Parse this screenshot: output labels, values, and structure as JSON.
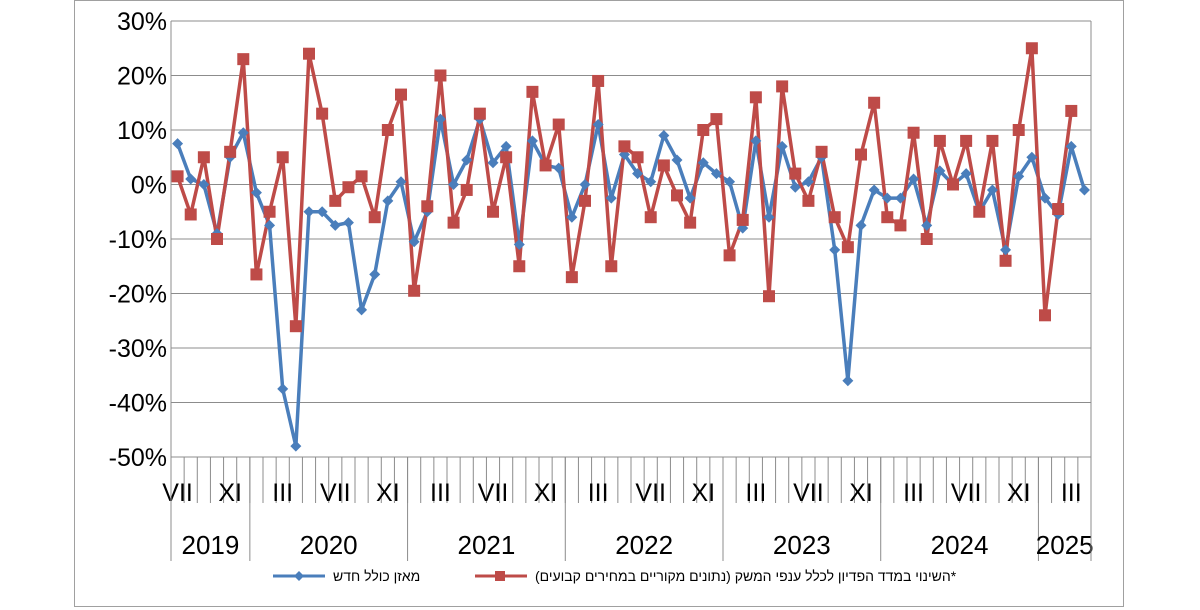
{
  "chart_data": {
    "type": "line",
    "title": "",
    "xlabel": "",
    "ylabel": "",
    "ylim": [
      -50,
      30
    ],
    "y_ticks": [
      "30%",
      "20%",
      "10%",
      "0%",
      "-10%",
      "-20%",
      "-30%",
      "-40%",
      "-50%"
    ],
    "y_tick_values": [
      30,
      20,
      10,
      0,
      -10,
      -20,
      -30,
      -40,
      -50
    ],
    "grid": true,
    "legend_position": "bottom",
    "month_ticks": [
      {
        "label": "VII",
        "index": 0
      },
      {
        "label": "XI",
        "index": 4
      },
      {
        "label": "III",
        "index": 8
      },
      {
        "label": "VII",
        "index": 12
      },
      {
        "label": "XI",
        "index": 16
      },
      {
        "label": "III",
        "index": 20
      },
      {
        "label": "VII",
        "index": 24
      },
      {
        "label": "XI",
        "index": 28
      },
      {
        "label": "III",
        "index": 32
      },
      {
        "label": "VII",
        "index": 36
      },
      {
        "label": "XI",
        "index": 40
      },
      {
        "label": "III",
        "index": 44
      },
      {
        "label": "VII",
        "index": 48
      },
      {
        "label": "XI",
        "index": 52
      },
      {
        "label": "III",
        "index": 56
      },
      {
        "label": "VII",
        "index": 60
      },
      {
        "label": "XI",
        "index": 64
      },
      {
        "label": "III",
        "index": 68
      }
    ],
    "years": [
      {
        "label": "2019",
        "start": 0,
        "end": 6
      },
      {
        "label": "2020",
        "start": 6,
        "end": 18
      },
      {
        "label": "2021",
        "start": 18,
        "end": 30
      },
      {
        "label": "2022",
        "start": 30,
        "end": 42
      },
      {
        "label": "2023",
        "start": 42,
        "end": 54
      },
      {
        "label": "2024",
        "start": 54,
        "end": 66
      },
      {
        "label": "2025",
        "start": 66,
        "end": 70
      }
    ],
    "n_points": 70,
    "series": [
      {
        "name": "מאזן כולל חדש",
        "color": "#4a7ebb",
        "marker": "diamond",
        "values": [
          7.5,
          1,
          0,
          -9,
          5,
          9.5,
          -1.5,
          -7.5,
          -37.5,
          -48,
          -5,
          -5,
          -7.5,
          -7,
          -23,
          -16.5,
          -3,
          0.5,
          -10.5,
          -5,
          12,
          0,
          4.5,
          12,
          4,
          7,
          -11,
          8,
          3.5,
          3,
          -6,
          0,
          11,
          -2.5,
          5.5,
          2,
          0.5,
          9,
          4.5,
          -2.5,
          4,
          2,
          0.5,
          -8,
          8,
          -6,
          7,
          -0.5,
          0.5,
          5,
          -12,
          -36,
          -7.5,
          -1,
          -2.5,
          -2.5,
          1,
          -7.5,
          2.5,
          0,
          2,
          -5,
          -1,
          -12,
          1.5,
          5,
          -2.5,
          -5.5,
          7,
          -1
        ]
      },
      {
        "name": "השינוי במדד הפדיון לכלל ענפי המשק (נתונים מקוריים במחירים קבועים)*",
        "color": "#be4b48",
        "marker": "square",
        "values": [
          1.5,
          -5.5,
          5,
          -10,
          6,
          23,
          -16.5,
          -5,
          5,
          -26,
          24,
          13,
          -3,
          -0.5,
          1.5,
          -6,
          10,
          16.5,
          -19.5,
          -4,
          20,
          -7,
          -1,
          13,
          -5,
          5,
          -15,
          17,
          3.5,
          11,
          -17,
          -3,
          19,
          -15,
          7,
          5,
          -6,
          3.5,
          -2,
          -7,
          10,
          12,
          -13,
          -6.5,
          16,
          -20.5,
          18,
          2,
          -3,
          6,
          -6,
          -11.5,
          5.5,
          15,
          -6,
          -7.5,
          9.5,
          -10,
          8,
          0,
          8,
          -5,
          8,
          -14,
          10,
          25,
          -24,
          -4.5,
          13.5
        ]
      }
    ]
  }
}
